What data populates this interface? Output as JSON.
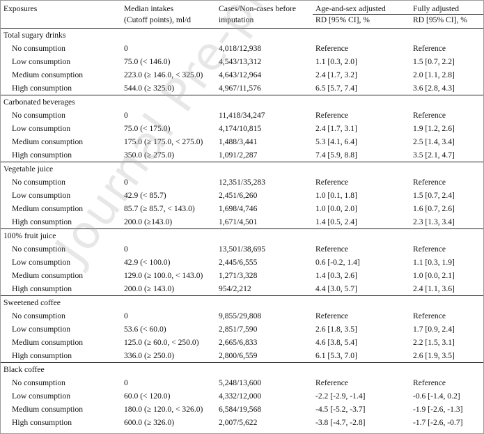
{
  "header": {
    "exposures": "Exposures",
    "median_intakes": "Median intakes",
    "cutoff_points": "(Cutoff points), ml/d",
    "cases_line1": "Cases/Non-cases before",
    "cases_line2": "imputation",
    "age_sex_adjusted": "Age-and-sex adjusted",
    "fully_adjusted": "Fully adjusted",
    "rd_ci": "RD [95% CI], %"
  },
  "groups": [
    {
      "name": "Total sugary drinks",
      "rows": [
        [
          "No consumption",
          "0",
          "4,018/12,938",
          "Reference",
          "Reference"
        ],
        [
          "Low consumption",
          "75.0 (< 146.0)",
          "4,543/13,312",
          "1.1 [0.3, 2.0]",
          "1.5 [0.7, 2.2]"
        ],
        [
          "Medium consumption",
          "223.0 (≥ 146.0, < 325.0)",
          "4,643/12,964",
          "2.4 [1.7, 3.2]",
          "2.0 [1.1, 2.8]"
        ],
        [
          "High consumption",
          "544.0 (≥ 325.0)",
          "4,967/11,576",
          "6.5 [5.7, 7.4]",
          "3.6 [2.8, 4.3]"
        ]
      ]
    },
    {
      "name": "Carbonated beverages",
      "rows": [
        [
          "No consumption",
          "0",
          "11,418/34,247",
          "Reference",
          "Reference"
        ],
        [
          "Low consumption",
          "75.0 (< 175.0)",
          "4,174/10,815",
          "2.4 [1.7, 3.1]",
          "1.9 [1.2, 2.6]"
        ],
        [
          "Medium consumption",
          "175.0 (≥ 175.0, < 275.0)",
          "1,488/3,441",
          "5.3 [4.1, 6.4]",
          "2.5 [1.4, 3.4]"
        ],
        [
          "High consumption",
          "350.0 (≥ 275.0)",
          "1,091/2,287",
          "7.4 [5.9, 8.8]",
          "3.5 [2.1, 4.7]"
        ]
      ]
    },
    {
      "name": "Vegetable juice",
      "rows": [
        [
          "No consumption",
          "0",
          "12,351/35,283",
          "Reference",
          "Reference"
        ],
        [
          "Low consumption",
          "42.9 (< 85.7)",
          "2,451/6,260",
          "1.0 [0.1, 1.8]",
          "1.5 [0.7, 2.4]"
        ],
        [
          "Medium consumption",
          "85.7 (≥ 85.7, < 143.0)",
          "1,698/4,746",
          "1.0 [0.0, 2.0]",
          "1.6 [0.7, 2.6]"
        ],
        [
          "High consumption",
          "200.0 (≥143.0)",
          "1,671/4,501",
          "1.4 [0.5, 2.4]",
          "2.3 [1.3, 3.4]"
        ]
      ]
    },
    {
      "name": "100% fruit juice",
      "rows": [
        [
          "No consumption",
          "0",
          "13,501/38,695",
          "Reference",
          "Reference"
        ],
        [
          "Low consumption",
          "42.9 (< 100.0)",
          "2,445/6,555",
          "0.6 [-0.2, 1.4]",
          "1.1 [0.3, 1.9]"
        ],
        [
          "Medium consumption",
          "129.0 (≥ 100.0, < 143.0)",
          "1,271/3,328",
          "1.4 [0.3, 2.6]",
          "1.0 [0.0, 2.1]"
        ],
        [
          "High consumption",
          "200.0 (≥ 143.0)",
          "954/2,212",
          "4.4 [3.0, 5.7]",
          "2.4 [1.1, 3.6]"
        ]
      ]
    },
    {
      "name": "Sweetened coffee",
      "rows": [
        [
          "No consumption",
          "0",
          "9,855/29,808",
          "Reference",
          "Reference"
        ],
        [
          "Low consumption",
          "53.6 (< 60.0)",
          "2,851/7,590",
          "2.6 [1.8, 3.5]",
          "1.7 [0.9, 2.4]"
        ],
        [
          "Medium consumption",
          "125.0 (≥ 60.0, < 250.0)",
          "2,665/6,833",
          "4.6 [3.8, 5.4]",
          "2.2 [1.5, 3.1]"
        ],
        [
          "High consumption",
          "336.0 (≥ 250.0)",
          "2,800/6,559",
          "6.1 [5.3, 7.0]",
          "2.6 [1.9, 3.5]"
        ]
      ]
    },
    {
      "name": "Black coffee",
      "rows": [
        [
          "No consumption",
          "0",
          "5,248/13,600",
          "Reference",
          "Reference"
        ],
        [
          "Low consumption",
          "60.0 (< 120.0)",
          "4,332/12,000",
          "-2.2 [-2.9, -1.4]",
          "-0.6 [-1.4, 0.2]"
        ],
        [
          "Medium consumption",
          "180.0 (≥ 120.0, < 326.0)",
          "6,584/19,568",
          "-4.5 [-5.2, -3.7]",
          "-1.9 [-2.6, -1.3]"
        ],
        [
          "High consumption",
          "600.0 (≥ 326.0)",
          "2,007/5,622",
          "-3.8 [-4.7, -2.8]",
          "-1.7 [-2.6, -0.7]"
        ]
      ]
    }
  ],
  "watermark": "Journal Pre-proof"
}
